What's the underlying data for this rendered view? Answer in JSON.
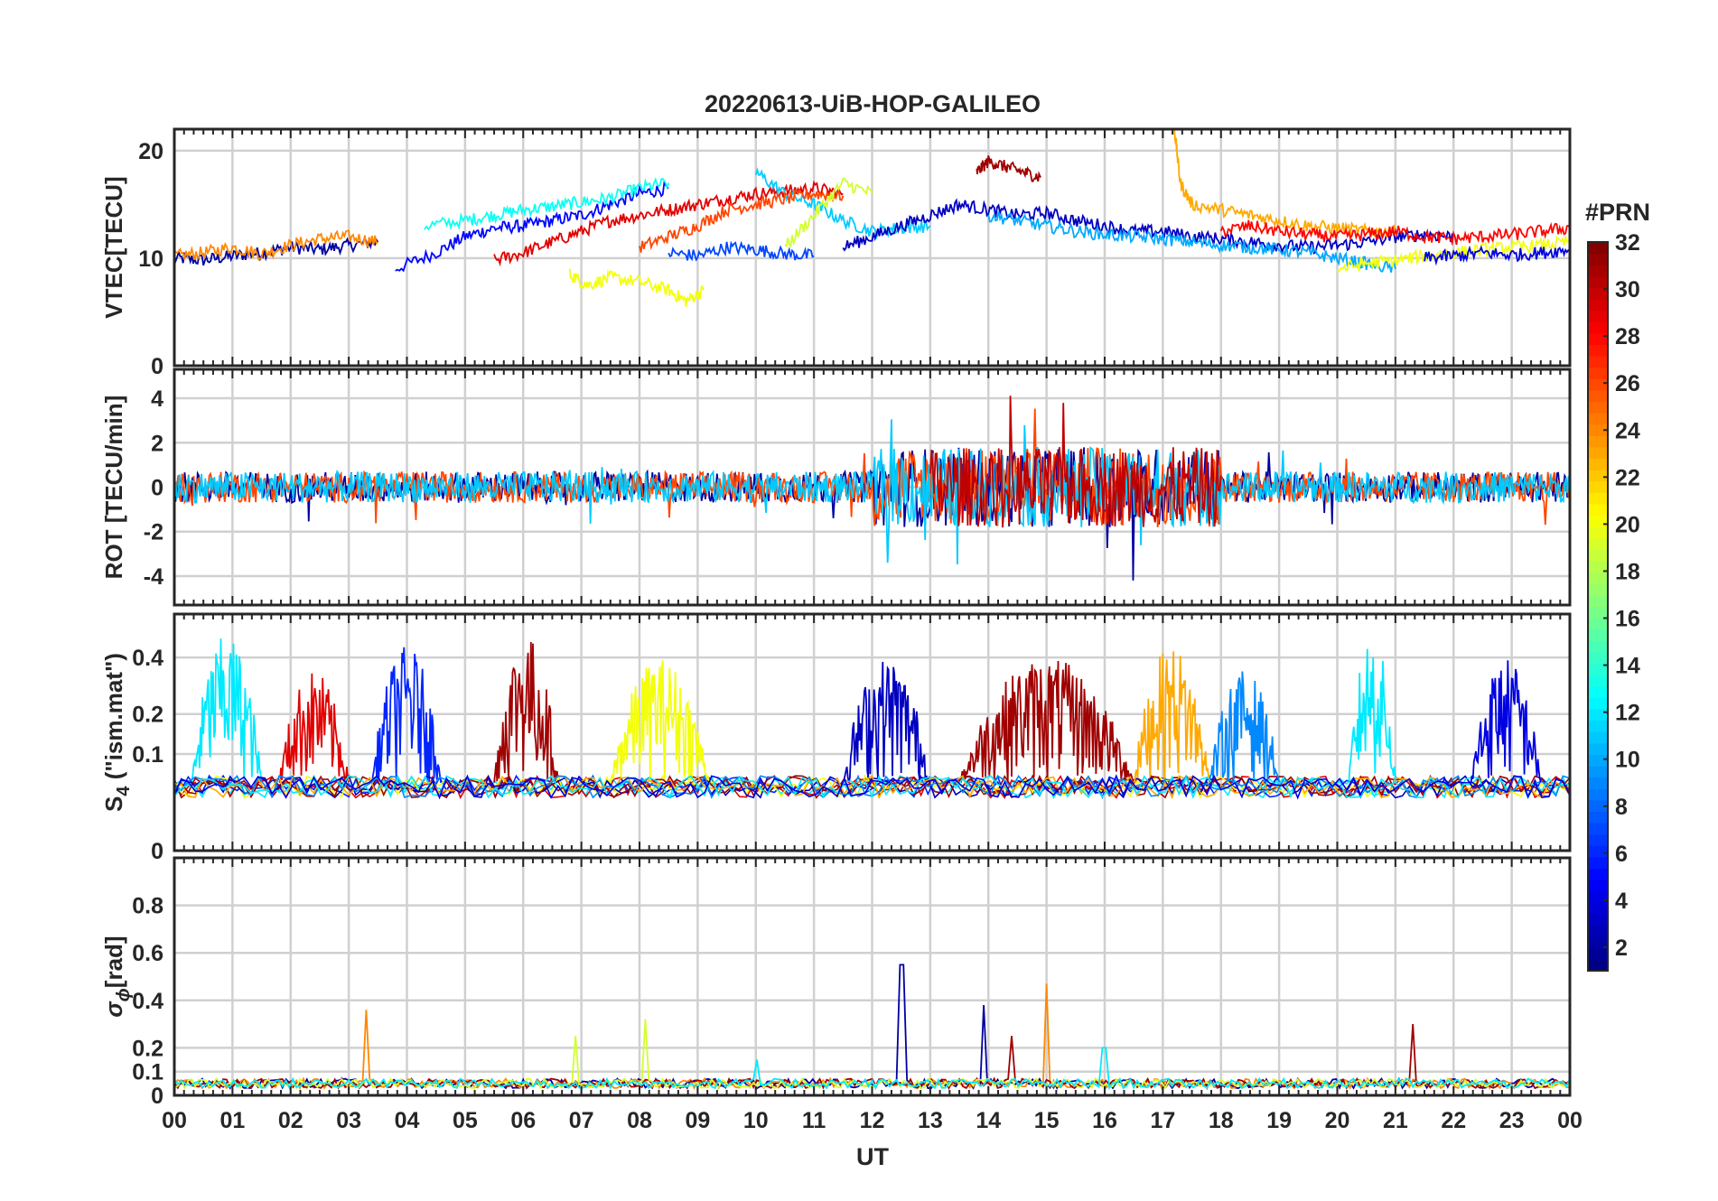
{
  "chart_data": {
    "type": "line",
    "title": "20220613-UiB-HOP-GALILEO",
    "xlabel": "UT",
    "x_ticks": [
      "00",
      "01",
      "02",
      "03",
      "04",
      "05",
      "06",
      "07",
      "08",
      "09",
      "10",
      "11",
      "12",
      "13",
      "14",
      "15",
      "16",
      "17",
      "18",
      "19",
      "20",
      "21",
      "22",
      "23",
      "00"
    ],
    "xlim": [
      0,
      24
    ],
    "grid": true,
    "colorbar": {
      "label": "#PRN",
      "range": [
        1,
        32
      ],
      "ticks": [
        "2",
        "4",
        "6",
        "8",
        "10",
        "12",
        "14",
        "16",
        "18",
        "20",
        "22",
        "24",
        "26",
        "28",
        "30",
        "32"
      ],
      "colormap": "jet"
    },
    "panels": [
      {
        "ylabel": "VTEC[TECU]",
        "ylim": [
          0,
          22
        ],
        "yticks": [
          "0",
          "10",
          "20"
        ],
        "series": [
          {
            "prn": 2,
            "x": [
              0,
              0.5,
              1,
              1.5,
              2,
              2.5,
              3,
              3.5
            ],
            "y": [
              10,
              9.8,
              10.2,
              10.5,
              11,
              10.8,
              11.2,
              11.5
            ]
          },
          {
            "prn": 5,
            "x": [
              3.8,
              4.5,
              5,
              5.5,
              6,
              6.5,
              7,
              7.5,
              8,
              8.5
            ],
            "y": [
              9,
              10.5,
              12,
              12.8,
              13,
              13.5,
              14,
              15,
              16,
              16.5
            ]
          },
          {
            "prn": 24,
            "x": [
              0,
              0.5,
              1,
              1.5,
              2,
              2.5,
              3,
              3.5
            ],
            "y": [
              10.2,
              10.5,
              11,
              10.4,
              11.2,
              11.8,
              12,
              11.5
            ]
          },
          {
            "prn": 13,
            "x": [
              4.3,
              5,
              5.5,
              6,
              6.5,
              7,
              7.5,
              8,
              8.5
            ],
            "y": [
              13,
              13.5,
              14,
              14.5,
              14.8,
              15.2,
              15.6,
              16.5,
              17
            ]
          },
          {
            "prn": 29,
            "x": [
              5.5,
              6,
              6.5,
              7,
              7.5,
              8,
              8.5,
              9,
              9.5,
              10,
              10.5,
              11,
              11.5
            ],
            "y": [
              9.8,
              10.5,
              11.5,
              12.5,
              13.5,
              14,
              14.5,
              15,
              15.5,
              16,
              16.2,
              16.5,
              16
            ]
          },
          {
            "prn": 20,
            "x": [
              6.8,
              7.1,
              7.5,
              8,
              8.5,
              8.8,
              9.1
            ],
            "y": [
              8.5,
              7.5,
              8.2,
              7.8,
              7,
              6,
              7
            ]
          },
          {
            "prn": 7,
            "x": [
              8.5,
              9,
              9.5,
              10,
              10.5,
              11
            ],
            "y": [
              10.5,
              10.2,
              11,
              10.8,
              10.4,
              10.2
            ]
          },
          {
            "prn": 11,
            "x": [
              10,
              10.5,
              11,
              11.5,
              12,
              12.5,
              13
            ],
            "y": [
              18,
              16,
              15,
              13.5,
              12.5,
              12.8,
              13
            ]
          },
          {
            "prn": 26,
            "x": [
              8,
              8.5,
              9,
              9.5,
              10,
              10.5,
              11,
              11.5
            ],
            "y": [
              11,
              12,
              13,
              14.5,
              15,
              15.5,
              16,
              15.8
            ]
          },
          {
            "prn": 19,
            "x": [
              10.5,
              11,
              11.5,
              12
            ],
            "y": [
              11,
              14,
              17,
              16
            ]
          },
          {
            "prn": 31,
            "x": [
              13.8,
              14,
              14.3,
              14.6,
              14.9
            ],
            "y": [
              18,
              19,
              18.5,
              18,
              17.5
            ]
          },
          {
            "prn": 3,
            "x": [
              11.5,
              12,
              12.5,
              13,
              13.5,
              14,
              14.5,
              15,
              15.5,
              16,
              16.5,
              17,
              17.5,
              18,
              18.5,
              19,
              19.5,
              20,
              20.5,
              21,
              21.5,
              22
            ],
            "y": [
              11,
              12,
              13,
              14,
              15,
              14.5,
              14,
              14.2,
              13.5,
              13,
              12.5,
              12.5,
              12,
              11.8,
              11.5,
              11.2,
              11,
              11.2,
              11.5,
              12,
              12.2,
              12
            ]
          },
          {
            "prn": 23,
            "x": [
              17.2,
              17.3,
              17.5,
              18,
              18.5,
              19,
              19.5,
              20,
              20.5,
              21
            ],
            "y": [
              22,
              17,
              15,
              14.5,
              14,
              13.5,
              13,
              12.8,
              12.5,
              12.5
            ]
          },
          {
            "prn": 10,
            "x": [
              14,
              14.5,
              15,
              15.5,
              16,
              16.5,
              17,
              17.5,
              18,
              18.5,
              19,
              19.5,
              20,
              20.5,
              21
            ],
            "y": [
              14,
              13.5,
              13,
              12.5,
              12.2,
              12,
              11.8,
              11.5,
              11.2,
              11,
              10.8,
              10.5,
              10,
              9.5,
              9
            ]
          },
          {
            "prn": 28,
            "x": [
              18,
              18.5,
              19,
              19.5,
              20,
              20.5,
              21,
              21.5,
              22,
              22.5,
              23,
              23.5,
              24
            ],
            "y": [
              12.5,
              13,
              12.5,
              12.2,
              12,
              12.2,
              12.5,
              12,
              11.8,
              12,
              12.2,
              12.5,
              12.8
            ]
          },
          {
            "prn": 20,
            "x": [
              20,
              20.5,
              21,
              21.5,
              22,
              22.5,
              23,
              23.5,
              24
            ],
            "y": [
              9,
              9.5,
              9.8,
              10.2,
              10.5,
              10.8,
              11,
              11.2,
              11.5
            ]
          },
          {
            "prn": 4,
            "x": [
              21.5,
              22,
              22.5,
              23,
              23.5,
              24
            ],
            "y": [
              10,
              10.2,
              10.5,
              10.3,
              10.5,
              10.8
            ]
          }
        ]
      },
      {
        "ylabel": "ROT [TECU/min]",
        "ylim": [
          -5.3,
          5.3
        ],
        "yticks": [
          "-4",
          "-2",
          "0",
          "2",
          "4"
        ],
        "series": [
          {
            "prn": 2,
            "noise": "rot",
            "x_range": [
              0,
              24
            ]
          },
          {
            "prn": 26,
            "noise": "rot",
            "x_range": [
              0,
              24
            ]
          },
          {
            "prn": 11,
            "noise": "rot",
            "x_range": [
              0,
              24
            ]
          },
          {
            "prn": 30,
            "noise": "rot",
            "x_range": [
              13,
              18
            ]
          }
        ]
      },
      {
        "ylabel": "S4 (\"ism.mat\")",
        "ylabel_main": "S",
        "ylabel_sub": "4",
        "ylabel_rest": " (\"ism.mat\")",
        "ylim": [
          0,
          0.6
        ],
        "y_scale": "sqrt",
        "yticks": [
          "0",
          "0.1",
          "0.2",
          "0.4"
        ],
        "series": [
          {
            "prn": 12,
            "bursts": [
              [
                0.3,
                1.5,
                0.45
              ]
            ]
          },
          {
            "prn": 29,
            "bursts": [
              [
                1.8,
                3.0,
                0.3
              ]
            ]
          },
          {
            "prn": 6,
            "bursts": [
              [
                3.4,
                4.6,
                0.4
              ]
            ]
          },
          {
            "prn": 31,
            "bursts": [
              [
                5.5,
                6.6,
                0.45
              ]
            ]
          },
          {
            "prn": 20,
            "bursts": [
              [
                7.5,
                9.2,
                0.35
              ]
            ]
          },
          {
            "prn": 3,
            "bursts": [
              [
                11.5,
                13,
                0.35
              ]
            ]
          },
          {
            "prn": 31,
            "bursts": [
              [
                13.5,
                16.5,
                0.35
              ]
            ]
          },
          {
            "prn": 23,
            "bursts": [
              [
                16.5,
                17.8,
                0.4
              ]
            ]
          },
          {
            "prn": 9,
            "bursts": [
              [
                17.8,
                19,
                0.3
              ]
            ]
          },
          {
            "prn": 12,
            "bursts": [
              [
                20.2,
                21,
                0.45
              ]
            ]
          },
          {
            "prn": 4,
            "bursts": [
              [
                22.3,
                23.5,
                0.35
              ]
            ]
          }
        ]
      },
      {
        "ylabel": "σϕ[rad]",
        "ylabel_main": "σ",
        "ylabel_sub": "ϕ",
        "ylabel_rest": "[rad]",
        "ylim": [
          0,
          1.0
        ],
        "y_scale": "piecewise",
        "yticks": [
          "0",
          "0.1",
          "0.2",
          "0.4",
          "0.6",
          "0.8"
        ],
        "series": [
          {
            "prn": 2,
            "spikes": [
              [
                12.5,
                0.55
              ],
              [
                13.9,
                0.38
              ]
            ]
          },
          {
            "prn": 24,
            "spikes": [
              [
                3.3,
                0.36
              ],
              [
                15,
                0.47
              ]
            ]
          },
          {
            "prn": 31,
            "spikes": [
              [
                21.3,
                0.3
              ],
              [
                14.4,
                0.25
              ]
            ]
          },
          {
            "prn": 19,
            "spikes": [
              [
                6.9,
                0.25
              ],
              [
                8.1,
                0.32
              ]
            ]
          },
          {
            "prn": 12,
            "spikes": [
              [
                10,
                0.15
              ],
              [
                16,
                0.2
              ]
            ]
          }
        ]
      }
    ]
  }
}
